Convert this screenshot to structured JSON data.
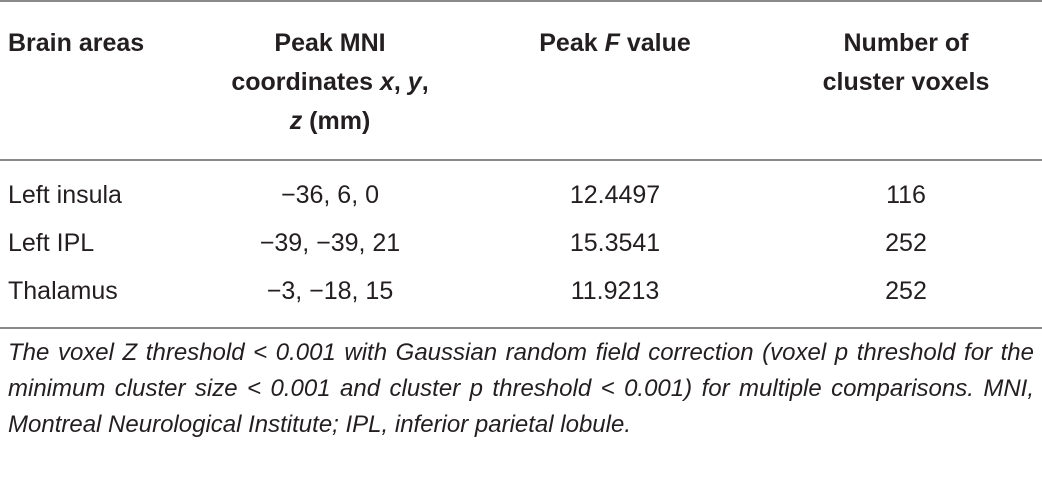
{
  "table": {
    "header": [
      [
        "Brain areas"
      ],
      [
        "Peak MNI coordinates ",
        "x",
        ", ",
        "y",
        ", ",
        "z",
        " (mm)"
      ],
      [
        "Peak ",
        "F",
        " value"
      ],
      [
        "Number of cluster voxels"
      ]
    ],
    "rows": [
      [
        "Left insula",
        "−36, 6, 0",
        "12.4497",
        "116"
      ],
      [
        "Left IPL",
        "−39, −39, 21",
        "15.3541",
        "252"
      ],
      [
        "Thalamus",
        "−3, −18, 15",
        "11.9213",
        "252"
      ]
    ],
    "footnote": "The voxel Z threshold < 0.001 with Gaussian random field correction (voxel p threshold for the minimum cluster size < 0.001 and cluster p threshold < 0.001) for multiple comparisons. MNI, Montreal Neurological Institute; IPL, inferior parietal lobule."
  }
}
